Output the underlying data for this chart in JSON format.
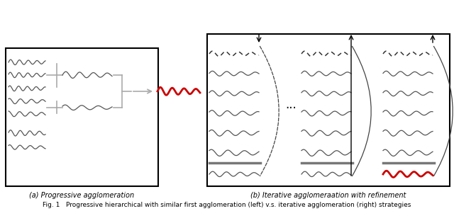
{
  "fig_width": 6.4,
  "fig_height": 2.98,
  "dpi": 100,
  "bg_color": "#ffffff",
  "caption_a": "(a) Progressive agglomeration",
  "caption_b": "(b) Iterative agglomeraation with refinement",
  "fig_caption": "Fig. 1   Progressive hierarchical with similar first agglomeration (left) v.s. iterative agglomeration (right) strategies",
  "red_color": "#cc0000",
  "gray_color": "#aaaaaa",
  "dark_gray": "#555555",
  "black": "#000000"
}
